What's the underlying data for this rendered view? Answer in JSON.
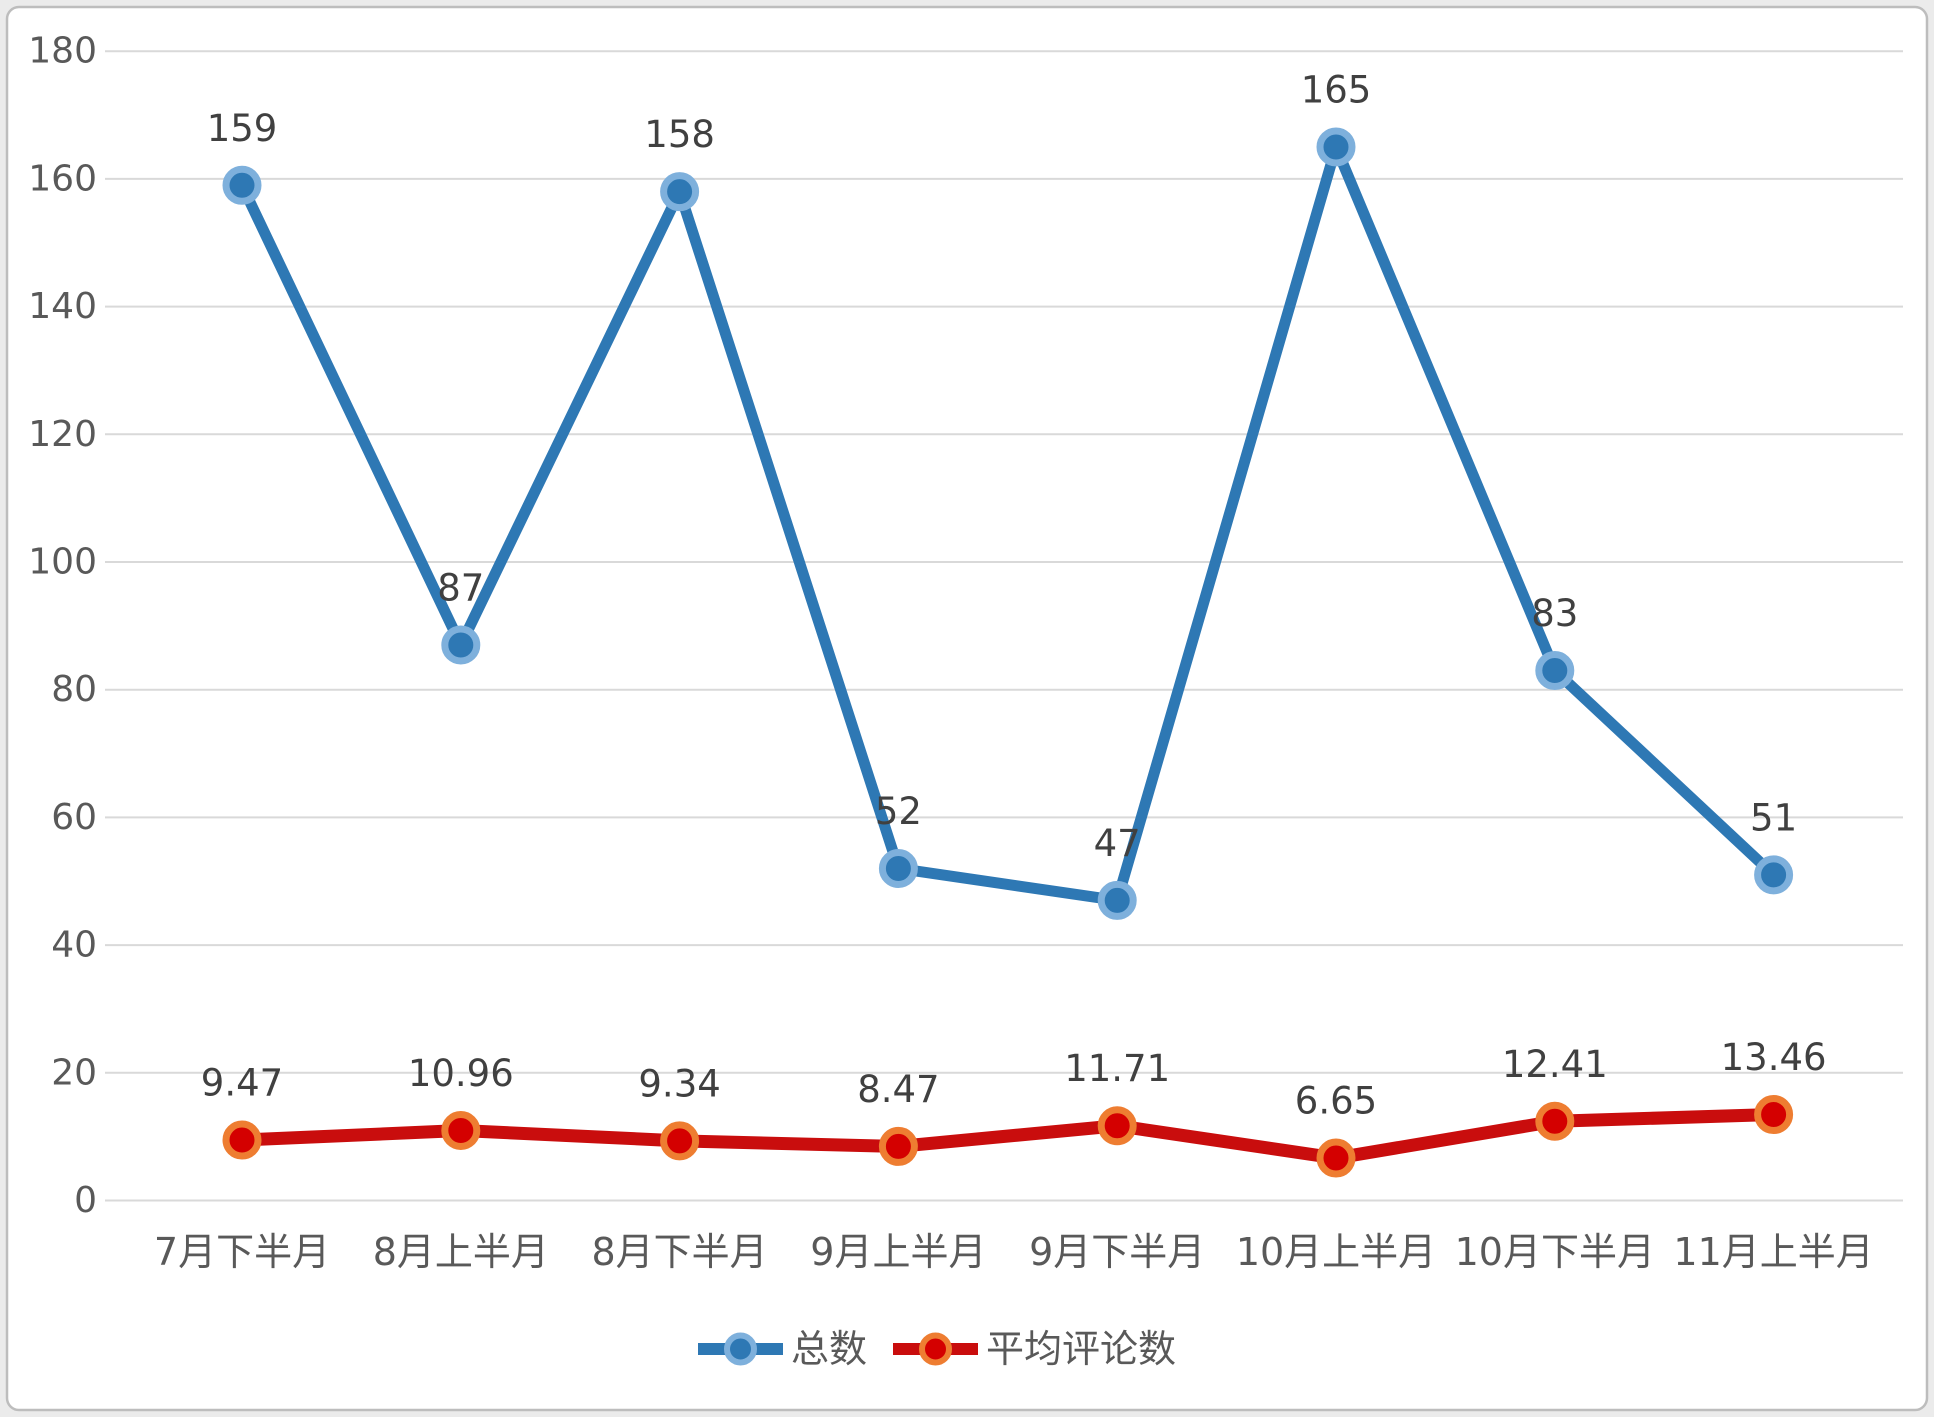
{
  "chart_data": {
    "type": "line",
    "categories": [
      "7月下半月",
      "8月上半月",
      "8月下半月",
      "9月上半月",
      "9月下半月",
      "10月上半月",
      "10月下半月",
      "11月上半月"
    ],
    "series": [
      {
        "name": "总数",
        "values": [
          159,
          87,
          158,
          52,
          47,
          165,
          83,
          51
        ],
        "line_color": "#2E78B4",
        "marker_fill": "#2E78B4",
        "marker_ring": "#7EB0DC"
      },
      {
        "name": "平均评论数",
        "values": [
          9.47,
          10.96,
          9.34,
          8.47,
          11.71,
          6.65,
          12.41,
          13.46
        ],
        "line_color": "#C90D0D",
        "marker_fill": "#D40000",
        "marker_ring": "#EE7D31"
      }
    ],
    "ylim": [
      0,
      180
    ],
    "ytick_step": 20,
    "ytick_labels": [
      "0",
      "20",
      "40",
      "60",
      "80",
      "100",
      "120",
      "140",
      "160",
      "180"
    ],
    "grid": true,
    "legend_position": "bottom",
    "data_labels": true,
    "colors": {
      "gridline": "#D9D9D9",
      "axis_label": "#595959",
      "data_label": "#404040",
      "frame_border": "#BDBDBD",
      "frame_fill": "#FFFFFF"
    }
  }
}
